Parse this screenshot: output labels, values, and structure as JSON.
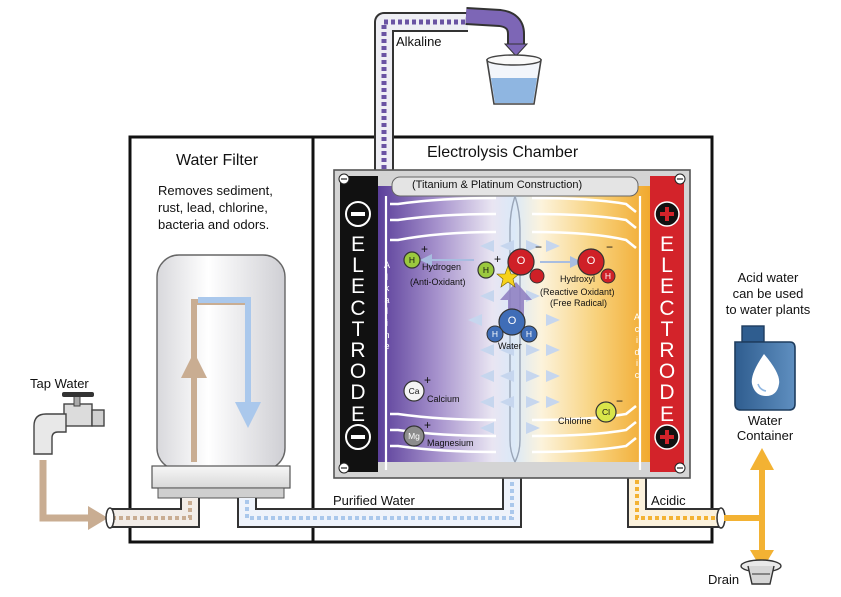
{
  "labels": {
    "alkaline": "Alkaline",
    "water_filter_title": "Water Filter",
    "water_filter_desc_1": "Removes sediment,",
    "water_filter_desc_2": "rust, lead, chlorine,",
    "water_filter_desc_3": "bacteria and odors.",
    "chamber_title": "Electrolysis Chamber",
    "construction": "(Titanium & Platinum Construction)",
    "electrode_neg": "ELECTRODE",
    "electrode_pos": "ELECTRODE",
    "alkaline_vertical": "Alkaline",
    "acidic_vertical": "Acidic",
    "hydrogen": "Hydrogen",
    "anti_oxidant": "(Anti-Oxidant)",
    "hydroxyl": "Hydroxyl",
    "reactive_oxidant": "(Reactive Oxidant)",
    "free_radical": "(Free Radical)",
    "water": "Water",
    "calcium": "Calcium",
    "magnesium": "Magnesium",
    "chlorine": "Chlorine",
    "tap_water": "Tap Water",
    "purified_water": "Purified Water",
    "acidic": "Acidic",
    "acid_note_1": "Acid water",
    "acid_note_2": "can be used",
    "acid_note_3": "to water plants",
    "water_container_1": "Water",
    "water_container_2": "Container",
    "drain": "Drain"
  },
  "symbols": {
    "h": "H",
    "o": "O",
    "ca": "Ca",
    "mg": "Mg",
    "cl": "Cl",
    "plus": "+",
    "minus": "−"
  },
  "colors": {
    "alkaline_purple": "#6a53a3",
    "acid_orange": "#f3b233",
    "electrode_negative": "#111111",
    "electrode_positive": "#d3232a",
    "filtered_blue": "#aac8ec",
    "tap_tan": "#c9ad92",
    "hydrogen_green": "#9bc93e",
    "oxygen_red": "#cf2027",
    "water_blue": "#3f6db7"
  }
}
